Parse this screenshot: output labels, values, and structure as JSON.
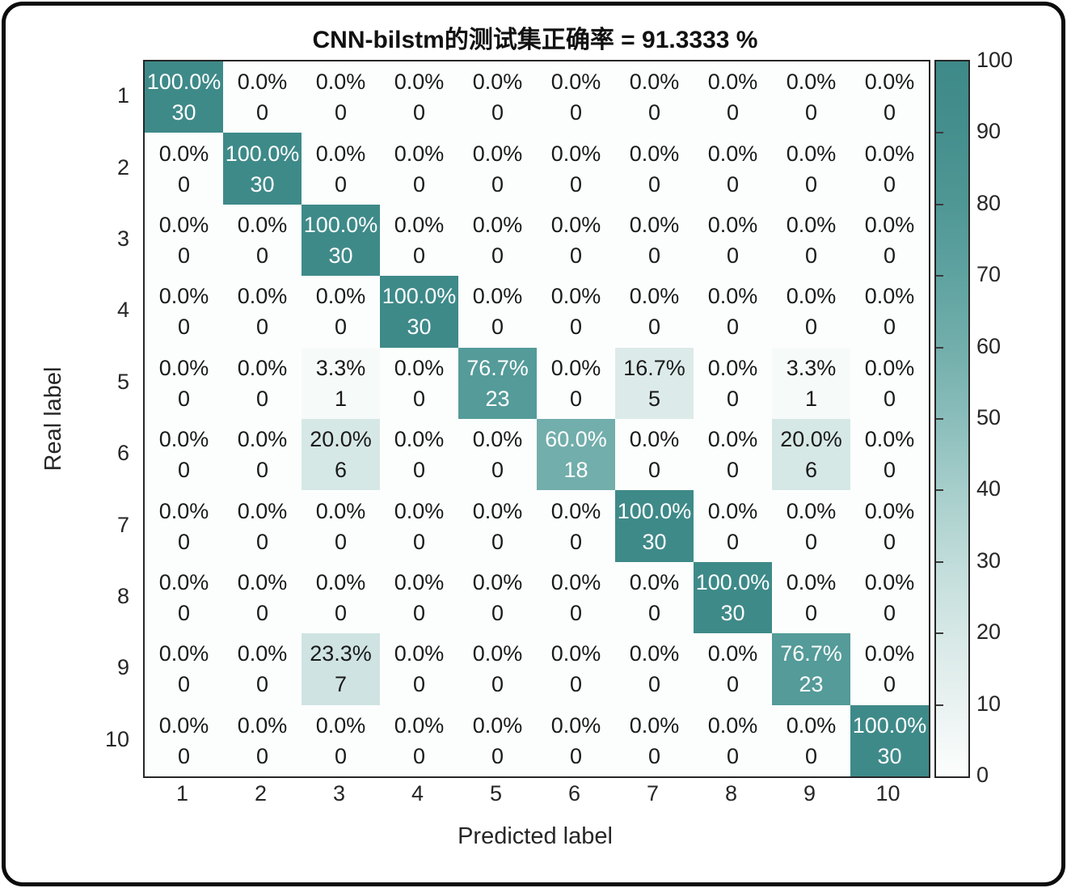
{
  "title": "CNN-bilstm的测试集正确率 = 91.3333 %",
  "chart_data": {
    "type": "heatmap",
    "title": "CNN-bilstm的测试集正确率 = 91.3333 %",
    "xlabel": "Predicted label",
    "ylabel": "Real label",
    "x_tick_labels": [
      "1",
      "2",
      "3",
      "4",
      "5",
      "6",
      "7",
      "8",
      "9",
      "10"
    ],
    "y_tick_labels": [
      "1",
      "2",
      "3",
      "4",
      "5",
      "6",
      "7",
      "8",
      "9",
      "10"
    ],
    "cell_value_unit": "%",
    "percent_matrix": [
      [
        100.0,
        0.0,
        0.0,
        0.0,
        0.0,
        0.0,
        0.0,
        0.0,
        0.0,
        0.0
      ],
      [
        0.0,
        100.0,
        0.0,
        0.0,
        0.0,
        0.0,
        0.0,
        0.0,
        0.0,
        0.0
      ],
      [
        0.0,
        0.0,
        100.0,
        0.0,
        0.0,
        0.0,
        0.0,
        0.0,
        0.0,
        0.0
      ],
      [
        0.0,
        0.0,
        0.0,
        100.0,
        0.0,
        0.0,
        0.0,
        0.0,
        0.0,
        0.0
      ],
      [
        0.0,
        0.0,
        3.3,
        0.0,
        76.7,
        0.0,
        16.7,
        0.0,
        3.3,
        0.0
      ],
      [
        0.0,
        0.0,
        20.0,
        0.0,
        0.0,
        60.0,
        0.0,
        0.0,
        20.0,
        0.0
      ],
      [
        0.0,
        0.0,
        0.0,
        0.0,
        0.0,
        0.0,
        100.0,
        0.0,
        0.0,
        0.0
      ],
      [
        0.0,
        0.0,
        0.0,
        0.0,
        0.0,
        0.0,
        0.0,
        100.0,
        0.0,
        0.0
      ],
      [
        0.0,
        0.0,
        23.3,
        0.0,
        0.0,
        0.0,
        0.0,
        0.0,
        76.7,
        0.0
      ],
      [
        0.0,
        0.0,
        0.0,
        0.0,
        0.0,
        0.0,
        0.0,
        0.0,
        0.0,
        100.0
      ]
    ],
    "count_matrix": [
      [
        30,
        0,
        0,
        0,
        0,
        0,
        0,
        0,
        0,
        0
      ],
      [
        0,
        30,
        0,
        0,
        0,
        0,
        0,
        0,
        0,
        0
      ],
      [
        0,
        0,
        30,
        0,
        0,
        0,
        0,
        0,
        0,
        0
      ],
      [
        0,
        0,
        0,
        30,
        0,
        0,
        0,
        0,
        0,
        0
      ],
      [
        0,
        0,
        1,
        0,
        23,
        0,
        5,
        0,
        1,
        0
      ],
      [
        0,
        0,
        6,
        0,
        0,
        18,
        0,
        0,
        6,
        0
      ],
      [
        0,
        0,
        0,
        0,
        0,
        0,
        30,
        0,
        0,
        0
      ],
      [
        0,
        0,
        0,
        0,
        0,
        0,
        0,
        30,
        0,
        0
      ],
      [
        0,
        0,
        7,
        0,
        0,
        0,
        0,
        0,
        23,
        0
      ],
      [
        0,
        0,
        0,
        0,
        0,
        0,
        0,
        0,
        0,
        30
      ]
    ],
    "colorbar": {
      "min": 0,
      "max": 100,
      "tick_values": [
        0,
        10,
        20,
        30,
        40,
        50,
        60,
        70,
        80,
        90,
        100
      ],
      "tick_labels": [
        "0",
        "10",
        "20",
        "30",
        "40",
        "50",
        "60",
        "70",
        "80",
        "90",
        "100"
      ],
      "position": "right"
    },
    "colormap_stops": [
      [
        0,
        "#fcfefd"
      ],
      [
        10,
        "#e9f2f1"
      ],
      [
        20,
        "#d6e8e6"
      ],
      [
        30,
        "#c0dcda"
      ],
      [
        40,
        "#a6cecb"
      ],
      [
        50,
        "#8abdbb"
      ],
      [
        60,
        "#72aeab"
      ],
      [
        70,
        "#5fa3a1"
      ],
      [
        80,
        "#4f9795"
      ],
      [
        90,
        "#458f8e"
      ],
      [
        100,
        "#3e8a89"
      ]
    ],
    "text_colors": {
      "light": "#ffffff",
      "dark": "#1a1a1a",
      "light_threshold": 50
    },
    "grid": false,
    "axis_color": "#262626"
  }
}
